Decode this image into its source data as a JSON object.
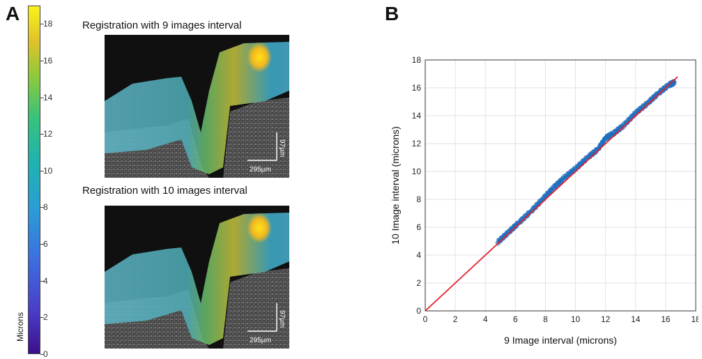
{
  "panel_a": {
    "letter": "A",
    "colorbar": {
      "label": "Microns",
      "ticks": [
        "0",
        "2",
        "4",
        "6",
        "8",
        "10",
        "12",
        "14",
        "16",
        "18"
      ],
      "min": 0,
      "max": 19
    },
    "image1": {
      "title": "Registration with 9 images interval",
      "scale_vertical": "97µm",
      "scale_horizontal": "295µm"
    },
    "image2": {
      "title": "Registration with 10 images interval",
      "scale_vertical": "97µm",
      "scale_horizontal": "295µm"
    }
  },
  "panel_b": {
    "letter": "B"
  },
  "chart_data": {
    "type": "scatter",
    "xlabel": "9 Image interval (microns)",
    "ylabel": "10 Image interval (microns)",
    "xlim": [
      0,
      18
    ],
    "ylim": [
      0,
      18
    ],
    "xticks": [
      0,
      2,
      4,
      6,
      8,
      10,
      12,
      14,
      16,
      18
    ],
    "yticks": [
      0,
      2,
      4,
      6,
      8,
      10,
      12,
      14,
      16,
      18
    ],
    "grid": true,
    "scatter_color": "#1f6fc0",
    "line_color": "#e8202a",
    "scatter_series": {
      "x": [
        4.8,
        5.5,
        6.2,
        7.0,
        7.8,
        8.5,
        9.2,
        10.0,
        10.8,
        11.5,
        12.0,
        12.5,
        13.2,
        14.0,
        14.8,
        15.5,
        16.2,
        16.6
      ],
      "y": [
        4.9,
        5.6,
        6.3,
        7.1,
        8.0,
        8.8,
        9.5,
        10.2,
        11.0,
        11.6,
        12.4,
        12.7,
        13.3,
        14.2,
        14.9,
        15.6,
        16.2,
        16.4
      ]
    },
    "fit_line": {
      "x": [
        0,
        16.8
      ],
      "y": [
        0,
        16.8
      ]
    }
  }
}
